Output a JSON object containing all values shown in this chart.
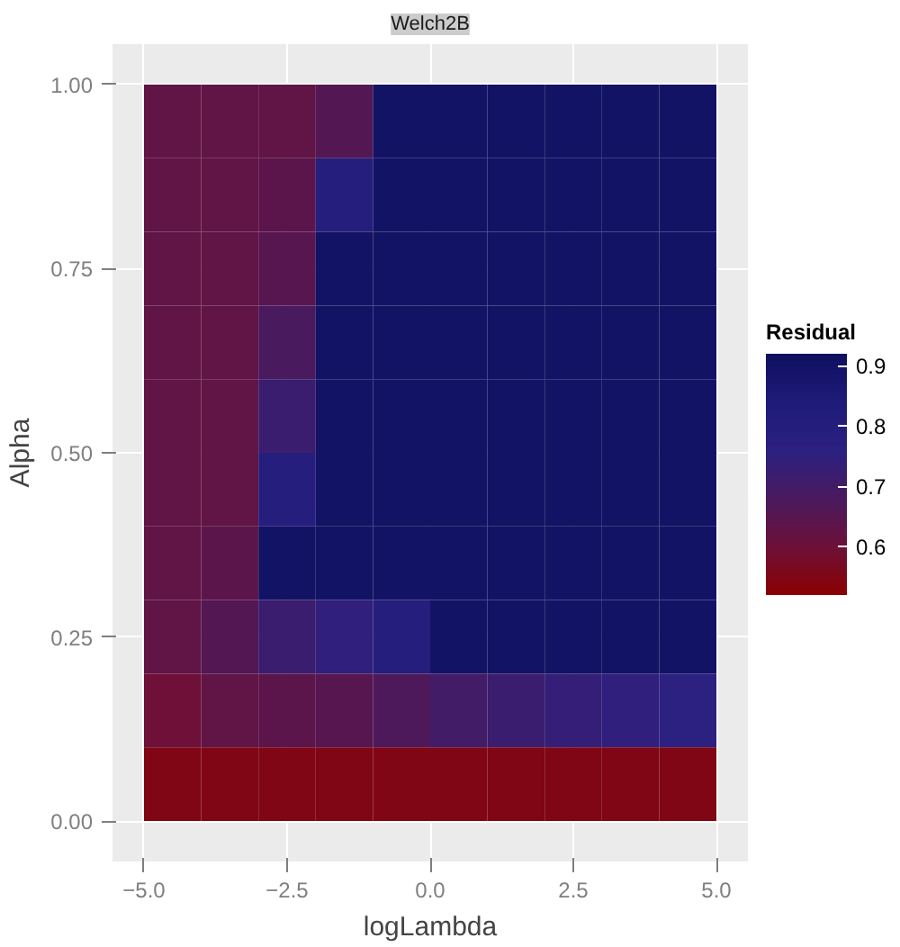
{
  "chart_data": {
    "type": "heatmap",
    "title": "Welch2B",
    "xlabel": "logLambda",
    "ylabel": "Alpha",
    "clabel": "Residual",
    "x": [
      -4.5,
      -3.5,
      -2.5,
      -1.5,
      -0.5,
      0.5,
      1.5,
      2.5,
      3.5,
      4.5
    ],
    "y": [
      0.95,
      0.85,
      0.75,
      0.65,
      0.55,
      0.45,
      0.35,
      0.25,
      0.15,
      0.05
    ],
    "cells": [
      [
        0.63,
        0.63,
        0.63,
        0.66,
        0.9,
        0.9,
        0.9,
        0.9,
        0.9,
        0.9
      ],
      [
        0.63,
        0.63,
        0.64,
        0.8,
        0.9,
        0.9,
        0.9,
        0.9,
        0.9,
        0.9
      ],
      [
        0.63,
        0.63,
        0.65,
        0.9,
        0.9,
        0.9,
        0.9,
        0.9,
        0.9,
        0.9
      ],
      [
        0.63,
        0.63,
        0.68,
        0.9,
        0.9,
        0.9,
        0.9,
        0.9,
        0.9,
        0.9
      ],
      [
        0.63,
        0.63,
        0.72,
        0.9,
        0.9,
        0.9,
        0.9,
        0.9,
        0.9,
        0.9
      ],
      [
        0.63,
        0.63,
        0.8,
        0.9,
        0.9,
        0.9,
        0.9,
        0.9,
        0.9,
        0.9
      ],
      [
        0.63,
        0.64,
        0.9,
        0.9,
        0.9,
        0.9,
        0.9,
        0.9,
        0.9,
        0.9
      ],
      [
        0.63,
        0.66,
        0.72,
        0.75,
        0.8,
        0.9,
        0.9,
        0.9,
        0.9,
        0.9
      ],
      [
        0.6,
        0.63,
        0.64,
        0.65,
        0.67,
        0.7,
        0.72,
        0.74,
        0.75,
        0.76
      ],
      [
        0.55,
        0.55,
        0.55,
        0.55,
        0.55,
        0.55,
        0.55,
        0.55,
        0.55,
        0.55
      ]
    ],
    "colors": [
      "#8b0000",
      "#6e1038",
      "#4a1a5e",
      "#2c2080",
      "#1e1c78",
      "#101060"
    ],
    "clim": [
      0.52,
      0.92
    ],
    "cticks": [
      0.6,
      0.7,
      0.8,
      0.9
    ],
    "xlim": [
      -5.55,
      5.55
    ],
    "ylim": [
      -0.055,
      1.055
    ],
    "xticks": [
      {
        "value": -5,
        "label": "−5.0"
      },
      {
        "value": -2.5,
        "label": "−2.5"
      },
      {
        "value": 0,
        "label": "0.0"
      },
      {
        "value": 2.5,
        "label": "2.5"
      },
      {
        "value": 5,
        "label": "5.0"
      }
    ],
    "yticks": [
      {
        "value": 0,
        "label": "0.00"
      },
      {
        "value": 0.25,
        "label": "0.25"
      },
      {
        "value": 0.5,
        "label": "0.50"
      },
      {
        "value": 0.75,
        "label": "0.75"
      },
      {
        "value": 1,
        "label": "1.00"
      }
    ],
    "grid": true
  }
}
